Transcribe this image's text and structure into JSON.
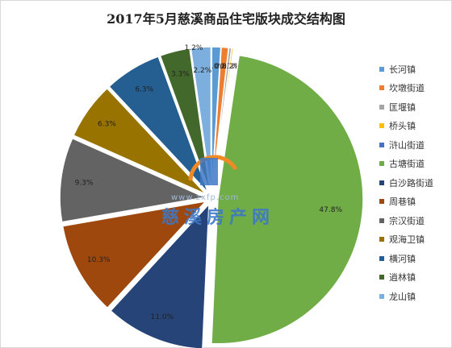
{
  "chart_data": {
    "type": "pie",
    "title": "2017年5月慈溪商品住宅版块成交结构图",
    "legend_position": "right",
    "categories": [
      "长河镇",
      "坎墩街道",
      "匡堰镇",
      "桥头镇",
      "浒山街道",
      "古塘街道",
      "白沙路街道",
      "周巷镇",
      "宗汉街道",
      "观海卫镇",
      "横河镇",
      "逍林镇",
      "龙山镇"
    ],
    "values": [
      1.0,
      0.8,
      0.3,
      0.2,
      0.0,
      47.8,
      11.0,
      10.3,
      9.3,
      6.3,
      6.3,
      3.3,
      2.2
    ],
    "labels": [
      "1.0%",
      "0.8%",
      "0.3%",
      "0.2%",
      "",
      "47.8%",
      "11.0%",
      "10.3%",
      "9.3%",
      "6.3%",
      "6.3%",
      "3.3%",
      "2.2%"
    ],
    "extra_label": "1.2%",
    "colors": [
      "#5b9bd5",
      "#ed7d31",
      "#a5a5a5",
      "#ffc000",
      "#4472c4",
      "#70ad47",
      "#264478",
      "#9e480e",
      "#636363",
      "#997300",
      "#255e91",
      "#43682b",
      "#7cafdd"
    ]
  },
  "watermark": {
    "url": "www.zxfp.com",
    "brand": "慈溪房产网"
  }
}
